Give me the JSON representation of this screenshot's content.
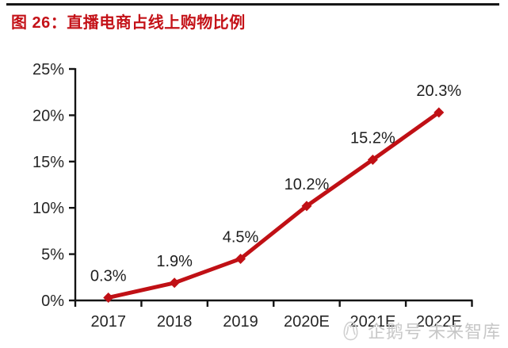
{
  "header": {
    "title": "图 26：直播电商占线上购物比例"
  },
  "watermark": {
    "icon": "penguin-icon",
    "text": "企鹅号 未来智库"
  },
  "chart_data": {
    "type": "line",
    "title": "直播电商占线上购物比例",
    "categories": [
      "2017",
      "2018",
      "2019",
      "2020E",
      "2021E",
      "2022E"
    ],
    "values": [
      0.3,
      1.9,
      4.5,
      10.2,
      15.2,
      20.3
    ],
    "data_labels": [
      "0.3%",
      "1.9%",
      "4.5%",
      "10.2%",
      "15.2%",
      "20.3%"
    ],
    "xlabel": "",
    "ylabel": "",
    "ylim": [
      0,
      25
    ],
    "y_tick_values": [
      0,
      5,
      10,
      15,
      20,
      25
    ],
    "y_tick_labels": [
      "0%",
      "5%",
      "10%",
      "15%",
      "20%",
      "25%"
    ],
    "grid": false,
    "legend": "none",
    "marker": "diamond",
    "colors": {
      "line": "#c01015",
      "marker": "#c01015",
      "axis": "#141414",
      "data_label": "#1f1f1f",
      "tick_label": "#262626",
      "title": "#c41218",
      "watermark": "#c7c7c7"
    }
  }
}
